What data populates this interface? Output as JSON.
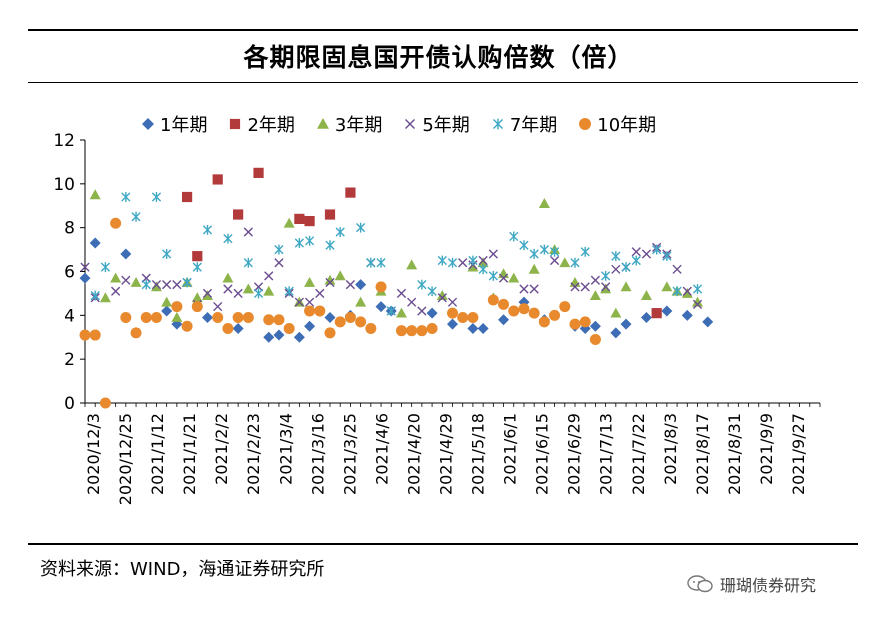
{
  "title": "各期限固息国开债认购倍数（倍）",
  "source": "资料来源：WIND，海通证券研究所",
  "watermark": "珊瑚债券研究",
  "colors": {
    "1y": "#3d6db5",
    "2y": "#b23a3a",
    "3y": "#8db44a",
    "5y": "#6a4c8f",
    "7y": "#3fa8c4",
    "10y": "#e8892e"
  },
  "chart_data": {
    "type": "scatter",
    "title": "各期限固息国开债认购倍数（倍）",
    "ylim": [
      0,
      12
    ],
    "yticks": [
      "0",
      "2",
      "4",
      "6",
      "8",
      "10",
      "12"
    ],
    "x_tick_labels": [
      "2020/12/3",
      "2020/12/25",
      "2021/1/12",
      "2021/1/21",
      "2021/2/2",
      "2021/2/23",
      "2021/3/4",
      "2021/3/16",
      "2021/3/25",
      "2021/4/6",
      "2021/4/20",
      "2021/4/29",
      "2021/5/18",
      "2021/6/1",
      "2021/6/15",
      "2021/6/29",
      "2021/7/13",
      "2021/7/22",
      "2021/8/3",
      "2021/8/17",
      "2021/8/31",
      "2021/9/9",
      "2021/9/27"
    ],
    "n_slots": 73,
    "series": [
      {
        "name": "1年期",
        "key": "1y",
        "marker": "diamond",
        "points": [
          [
            0,
            5.7
          ],
          [
            1,
            7.3
          ],
          [
            4,
            6.8
          ],
          [
            6,
            3.9
          ],
          [
            8,
            4.2
          ],
          [
            9,
            3.6
          ],
          [
            12,
            3.9
          ],
          [
            15,
            3.4
          ],
          [
            18,
            3.0
          ],
          [
            19,
            3.1
          ],
          [
            21,
            3.0
          ],
          [
            22,
            3.5
          ],
          [
            24,
            3.9
          ],
          [
            26,
            4.0
          ],
          [
            27,
            5.4
          ],
          [
            29,
            4.4
          ],
          [
            30,
            4.2
          ],
          [
            34,
            4.1
          ],
          [
            36,
            3.6
          ],
          [
            38,
            3.4
          ],
          [
            39,
            3.4
          ],
          [
            41,
            3.8
          ],
          [
            43,
            4.6
          ],
          [
            45,
            3.8
          ],
          [
            48,
            3.5
          ],
          [
            49,
            3.4
          ],
          [
            50,
            3.5
          ],
          [
            52,
            3.2
          ],
          [
            53,
            3.6
          ],
          [
            55,
            3.9
          ],
          [
            57,
            4.2
          ],
          [
            59,
            4.0
          ],
          [
            61,
            3.7
          ]
        ]
      },
      {
        "name": "2年期",
        "key": "2y",
        "marker": "square",
        "points": [
          [
            10,
            9.4
          ],
          [
            11,
            6.7
          ],
          [
            13,
            10.2
          ],
          [
            15,
            8.6
          ],
          [
            17,
            10.5
          ],
          [
            21,
            8.4
          ],
          [
            22,
            8.3
          ],
          [
            24,
            8.6
          ],
          [
            26,
            9.6
          ],
          [
            56,
            4.1
          ]
        ]
      },
      {
        "name": "3年期",
        "key": "3y",
        "marker": "triangle",
        "points": [
          [
            1,
            9.5
          ],
          [
            2,
            4.8
          ],
          [
            3,
            5.7
          ],
          [
            5,
            5.5
          ],
          [
            7,
            5.3
          ],
          [
            8,
            4.6
          ],
          [
            9,
            3.9
          ],
          [
            10,
            5.5
          ],
          [
            11,
            4.8
          ],
          [
            12,
            4.9
          ],
          [
            14,
            5.7
          ],
          [
            16,
            5.2
          ],
          [
            18,
            5.1
          ],
          [
            20,
            8.2
          ],
          [
            21,
            4.6
          ],
          [
            22,
            5.5
          ],
          [
            24,
            5.6
          ],
          [
            25,
            5.8
          ],
          [
            27,
            4.6
          ],
          [
            29,
            5.1
          ],
          [
            31,
            4.1
          ],
          [
            32,
            6.3
          ],
          [
            35,
            4.9
          ],
          [
            38,
            6.2
          ],
          [
            39,
            6.4
          ],
          [
            40,
            4.8
          ],
          [
            41,
            5.9
          ],
          [
            42,
            5.7
          ],
          [
            44,
            6.1
          ],
          [
            45,
            9.1
          ],
          [
            46,
            7.0
          ],
          [
            47,
            6.4
          ],
          [
            48,
            5.5
          ],
          [
            50,
            4.9
          ],
          [
            51,
            5.2
          ],
          [
            52,
            4.1
          ],
          [
            53,
            5.3
          ],
          [
            55,
            4.9
          ],
          [
            57,
            5.3
          ],
          [
            58,
            5.1
          ],
          [
            59,
            5.0
          ],
          [
            60,
            4.6
          ]
        ]
      },
      {
        "name": "5年期",
        "key": "5y",
        "marker": "x",
        "points": [
          [
            0,
            6.2
          ],
          [
            1,
            4.8
          ],
          [
            3,
            5.1
          ],
          [
            4,
            5.6
          ],
          [
            6,
            5.7
          ],
          [
            7,
            5.4
          ],
          [
            8,
            5.4
          ],
          [
            9,
            5.4
          ],
          [
            10,
            5.5
          ],
          [
            11,
            4.5
          ],
          [
            12,
            5.0
          ],
          [
            13,
            4.4
          ],
          [
            14,
            5.2
          ],
          [
            15,
            5.0
          ],
          [
            16,
            7.8
          ],
          [
            17,
            5.3
          ],
          [
            18,
            5.8
          ],
          [
            19,
            6.4
          ],
          [
            20,
            5.0
          ],
          [
            21,
            4.6
          ],
          [
            22,
            4.6
          ],
          [
            23,
            5.0
          ],
          [
            24,
            5.5
          ],
          [
            26,
            5.4
          ],
          [
            28,
            6.4
          ],
          [
            30,
            4.2
          ],
          [
            31,
            5.0
          ],
          [
            32,
            4.6
          ],
          [
            33,
            4.2
          ],
          [
            35,
            4.8
          ],
          [
            36,
            4.6
          ],
          [
            37,
            6.4
          ],
          [
            38,
            6.3
          ],
          [
            39,
            6.5
          ],
          [
            40,
            6.8
          ],
          [
            41,
            5.7
          ],
          [
            43,
            5.2
          ],
          [
            44,
            5.2
          ],
          [
            46,
            6.5
          ],
          [
            48,
            5.3
          ],
          [
            49,
            5.3
          ],
          [
            50,
            5.6
          ],
          [
            51,
            5.3
          ],
          [
            52,
            6.1
          ],
          [
            53,
            6.2
          ],
          [
            54,
            6.9
          ],
          [
            55,
            6.8
          ],
          [
            56,
            7.1
          ],
          [
            57,
            6.8
          ],
          [
            58,
            6.1
          ],
          [
            59,
            5.1
          ],
          [
            60,
            4.5
          ]
        ]
      },
      {
        "name": "7年期",
        "key": "7y",
        "marker": "star",
        "points": [
          [
            1,
            4.9
          ],
          [
            2,
            6.2
          ],
          [
            4,
            9.4
          ],
          [
            5,
            8.5
          ],
          [
            6,
            5.4
          ],
          [
            7,
            9.4
          ],
          [
            8,
            6.8
          ],
          [
            10,
            5.5
          ],
          [
            11,
            6.2
          ],
          [
            12,
            7.9
          ],
          [
            14,
            7.5
          ],
          [
            16,
            6.4
          ],
          [
            17,
            5.0
          ],
          [
            19,
            7.0
          ],
          [
            20,
            5.1
          ],
          [
            21,
            7.3
          ],
          [
            22,
            7.4
          ],
          [
            24,
            7.2
          ],
          [
            25,
            7.8
          ],
          [
            27,
            8.0
          ],
          [
            28,
            6.4
          ],
          [
            29,
            6.4
          ],
          [
            30,
            4.2
          ],
          [
            33,
            5.4
          ],
          [
            34,
            5.1
          ],
          [
            35,
            6.5
          ],
          [
            36,
            6.4
          ],
          [
            38,
            6.5
          ],
          [
            39,
            6.1
          ],
          [
            40,
            5.8
          ],
          [
            42,
            7.6
          ],
          [
            43,
            7.2
          ],
          [
            44,
            6.8
          ],
          [
            45,
            7.0
          ],
          [
            46,
            6.9
          ],
          [
            48,
            6.4
          ],
          [
            49,
            6.9
          ],
          [
            51,
            5.8
          ],
          [
            52,
            6.7
          ],
          [
            53,
            6.2
          ],
          [
            54,
            6.5
          ],
          [
            56,
            7.0
          ],
          [
            57,
            6.7
          ],
          [
            58,
            5.1
          ],
          [
            60,
            5.2
          ]
        ]
      },
      {
        "name": "10年期",
        "key": "10y",
        "marker": "circle",
        "points": [
          [
            0,
            3.1
          ],
          [
            1,
            3.1
          ],
          [
            2,
            0.0
          ],
          [
            3,
            8.2
          ],
          [
            4,
            3.9
          ],
          [
            5,
            3.2
          ],
          [
            6,
            3.9
          ],
          [
            7,
            3.9
          ],
          [
            9,
            4.4
          ],
          [
            10,
            3.5
          ],
          [
            11,
            4.4
          ],
          [
            13,
            3.9
          ],
          [
            14,
            3.4
          ],
          [
            15,
            3.9
          ],
          [
            16,
            3.9
          ],
          [
            18,
            3.8
          ],
          [
            19,
            3.8
          ],
          [
            20,
            3.4
          ],
          [
            22,
            4.2
          ],
          [
            23,
            4.2
          ],
          [
            24,
            3.2
          ],
          [
            25,
            3.7
          ],
          [
            26,
            3.9
          ],
          [
            27,
            3.7
          ],
          [
            28,
            3.4
          ],
          [
            29,
            5.3
          ],
          [
            31,
            3.3
          ],
          [
            32,
            3.3
          ],
          [
            33,
            3.3
          ],
          [
            34,
            3.4
          ],
          [
            36,
            4.1
          ],
          [
            37,
            3.9
          ],
          [
            38,
            3.9
          ],
          [
            40,
            4.7
          ],
          [
            41,
            4.5
          ],
          [
            42,
            4.2
          ],
          [
            43,
            4.3
          ],
          [
            44,
            4.1
          ],
          [
            45,
            3.7
          ],
          [
            46,
            4.0
          ],
          [
            47,
            4.4
          ],
          [
            48,
            3.6
          ],
          [
            49,
            3.7
          ],
          [
            50,
            2.9
          ]
        ]
      }
    ]
  }
}
